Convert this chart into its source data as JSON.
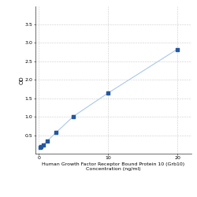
{
  "x": [
    0.156,
    0.312,
    0.625,
    1.25,
    2.5,
    5,
    10,
    20
  ],
  "y": [
    0.172,
    0.191,
    0.238,
    0.352,
    0.576,
    1.012,
    1.641,
    2.826
  ],
  "line_color": "#a8c8e8",
  "marker_color": "#2457a0",
  "marker_size": 3.5,
  "xlabel_line1": "Human Growth Factor Receptor Bound Protein 10 (Grb10)",
  "xlabel_line2": "Concentration (ng/ml)",
  "ylabel": "OD",
  "xlim": [
    -0.5,
    22
  ],
  "ylim": [
    0,
    4.0
  ],
  "yticks": [
    0.5,
    1.0,
    1.5,
    2.0,
    2.5,
    3.0,
    3.5
  ],
  "xticks": [
    0,
    10,
    20
  ],
  "grid_color": "#cccccc",
  "background_color": "#ffffff",
  "fig_background": "#ffffff",
  "axis_fontsize": 4.5,
  "tick_fontsize": 4.5,
  "ylabel_fontsize": 5.0
}
